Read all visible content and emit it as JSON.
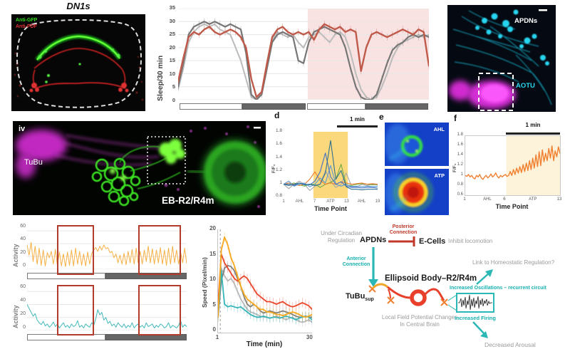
{
  "colors": {
    "teal_accent": "#2ab7b5",
    "inhibit_red": "#c0392b",
    "sleep_red": "#bf5a4b",
    "dark_gray": "#767676",
    "light_gray": "#b8b8b8",
    "activity_orange": "#f6b045",
    "activity_cyan": "#45b8ba",
    "atp_band_yellow": "#fbd46e",
    "atp_band_cream": "#fdf3da",
    "pink_shade": "#f8dedd",
    "magenta": "#e832e8",
    "cyan_neuron": "#18c8e8",
    "green_neuron": "#35e01f"
  },
  "panels": {
    "dn1s": {
      "title": "DN1s",
      "stain_green": "Anti-GFP",
      "stain_red": "Anti-PDF"
    },
    "apdns_panel": {
      "label_neurons": "APDNs",
      "label_region": "AOTU"
    },
    "tubu_panel": {
      "index": "iv",
      "label_left": "TuBu",
      "label_bottom": "EB-R2/R4m"
    },
    "panel_d": {
      "letter": "d",
      "scalebar": "1 min"
    },
    "panel_e": {
      "letter": "e",
      "img1_label": "AHL",
      "img2_label": "ATP"
    },
    "panel_f": {
      "letter": "f",
      "scalebar": "1 min"
    }
  },
  "diagram": {
    "under_circadian": "Under Circadian Regulation",
    "apdns": "APDNs",
    "posterior": "Posterior Connection",
    "ecells": "E-Cells",
    "inhibit": "Inhibit locomotion",
    "anterior": "Anterior Connection",
    "ellipsoid_body": "Ellipsoid Body–R2/R4m",
    "tubu": "TuBu",
    "tubu_sub": "sup",
    "lfp": "Local Field Potential Changes In Central Brain",
    "oscillations": "Increased Oscillations – recurrent circuit",
    "firing": "Increased Firing",
    "link": "Link to Homeostatic Regulation?",
    "arousal": "Decreased Arousal"
  },
  "chart_data": [
    {
      "id": "sleep",
      "type": "line",
      "ylabel": "Sleep/30 min",
      "yticks": [
        "35",
        "30",
        "25",
        "20",
        "15",
        "10",
        "5",
        "0"
      ],
      "ylim": [
        0,
        35
      ],
      "xlim": [
        0,
        48
      ],
      "grid": [
        0,
        5,
        10,
        15,
        20,
        25,
        30,
        35
      ],
      "light_dark_bar": [
        "light",
        "dark",
        "light",
        "dark"
      ],
      "bands": [
        {
          "x0": 24.8,
          "x1": 48,
          "color": "#f8dedd",
          "opacity": 0.85
        }
      ],
      "series": [
        {
          "name": "light-gray genotype",
          "color": "#bcbcbc",
          "w": 2,
          "err": 1.3,
          "values": [
            4,
            12,
            22,
            26,
            28,
            29,
            28,
            29,
            27,
            26,
            25,
            20,
            15,
            8,
            1,
            0,
            3,
            14,
            23,
            26,
            25,
            24,
            25,
            22,
            20,
            24,
            25,
            26,
            24,
            22,
            25,
            26,
            24,
            18,
            10,
            4,
            1,
            0,
            1,
            5,
            10,
            16,
            20,
            22,
            23,
            24,
            25,
            24,
            25
          ]
        },
        {
          "name": "dark-gray genotype",
          "color": "#767676",
          "w": 2.2,
          "err": 1.3,
          "values": [
            5,
            14,
            25,
            28,
            29,
            30,
            29,
            30,
            29,
            28,
            29,
            28,
            27,
            18,
            2,
            0,
            2,
            12,
            22,
            25,
            26,
            25,
            24,
            15,
            14,
            22,
            26,
            27,
            28,
            27,
            26,
            25,
            20,
            12,
            5,
            1,
            0,
            0,
            2,
            8,
            14,
            19,
            21,
            22,
            24,
            25,
            24,
            25,
            24
          ]
        },
        {
          "name": "experimental (red)",
          "color": "#bf5a4b",
          "w": 2.4,
          "err": 1.3,
          "values": [
            7,
            16,
            24,
            26,
            25,
            27,
            28,
            26,
            25,
            26,
            27,
            26,
            24,
            20,
            8,
            1,
            3,
            14,
            24,
            27,
            28,
            26,
            25,
            26,
            25,
            26,
            23,
            27,
            29,
            28,
            27,
            28,
            26,
            27,
            26,
            11,
            20,
            25,
            26,
            25,
            24,
            25,
            26,
            27,
            26,
            25,
            27,
            26,
            13
          ]
        }
      ]
    },
    {
      "id": "atp_multi",
      "type": "line",
      "ylabel": "F/F₀",
      "xlabel": "Time Point",
      "scalebar": "1 min",
      "yticks": [
        "1.8",
        "1.6",
        "1.4",
        "1.2",
        "1",
        "0.8"
      ],
      "xticks": [
        "1",
        "AHL",
        "7",
        "ATP",
        "13",
        "AHL",
        "19"
      ],
      "ylim": [
        0.78,
        1.84
      ],
      "xlim": [
        1,
        19
      ],
      "bands": [
        {
          "x0": 6.7,
          "x1": 13.3,
          "color": "#fbd46e",
          "opacity": 0.9,
          "label": "ATP"
        }
      ],
      "series": [
        {
          "name": "gray cell",
          "color": "#a6a6a6",
          "w": 1.1,
          "values": [
            1,
            0.93,
            1,
            1.05,
            1,
            0.9,
            0.97,
            1,
            1.22,
            1.05,
            0.95,
            1,
            1.18,
            0.97,
            0.96,
            1,
            0.98,
            1,
            0.99
          ]
        },
        {
          "name": "green cell",
          "color": "#70ad47",
          "w": 1.1,
          "values": [
            1,
            1,
            1.02,
            0.99,
            0.97,
            1,
            1,
            0.95,
            1,
            1.03,
            1.08,
            1.32,
            0.99,
            0.98,
            1,
            1.01,
            1,
            0.99,
            1
          ]
        },
        {
          "name": "orange cell",
          "color": "#ed7d31",
          "w": 1.1,
          "values": [
            1,
            1.02,
            1,
            0.98,
            1,
            1.08,
            1.2,
            1.06,
            1,
            1.02,
            1,
            1.04,
            1.02,
            1,
            1.01,
            1.02,
            1,
            1.01,
            1
          ]
        },
        {
          "name": "light-blue cell",
          "color": "#5b9bd5",
          "w": 1.1,
          "values": [
            1,
            1.05,
            0.97,
            1,
            1.02,
            0.96,
            1,
            1.1,
            1.02,
            1.3,
            1,
            0.97,
            1,
            0.96,
            0.97,
            0.96,
            0.97,
            0.96,
            0.97
          ]
        },
        {
          "name": "blue cell",
          "color": "#4472c4",
          "w": 1.1,
          "values": [
            1,
            1,
            0.98,
            1.02,
            1,
            0.99,
            1.05,
            1.2,
            1.5,
            1.12,
            1,
            1.04,
            0.97,
            0.95,
            0.95,
            0.94,
            0.95,
            0.95,
            0.94
          ]
        },
        {
          "name": "steel cell",
          "color": "#31708f",
          "w": 1.1,
          "values": [
            1,
            0.98,
            1,
            1.02,
            0.99,
            1,
            0.98,
            1,
            1.18,
            1.7,
            1.08,
            1.22,
            0.96,
            0.92,
            0.92,
            0.91,
            0.92,
            0.92,
            0.92
          ]
        }
      ]
    },
    {
      "id": "atp_single",
      "type": "line",
      "ylabel": "F/F₀",
      "xlabel": "Time Point",
      "scalebar": "1 min",
      "yticks": [
        "1.8",
        "1.6",
        "1.4",
        "1.2",
        "1",
        "0.8",
        "0.6"
      ],
      "xticks": [
        "1",
        "AHL",
        "6",
        "ATP",
        "13"
      ],
      "ylim": [
        0.6,
        1.8
      ],
      "xlim": [
        1,
        13
      ],
      "bands": [
        {
          "x0": 6.2,
          "x1": 13,
          "color": "#fdf3da",
          "opacity": 1,
          "label": "ATP"
        }
      ],
      "series": [
        {
          "name": "GCaMP response",
          "color": "#f08030",
          "w": 1.4,
          "values": [
            1.0,
            0.98,
            1.02,
            0.97,
            1.0,
            0.95,
            0.93,
            1.0,
            0.97,
            1.02,
            0.95,
            0.92,
            0.97,
            1.0,
            0.95,
            0.98,
            1.03,
            0.97,
            1.0,
            1.05,
            0.98,
            0.95,
            1.0,
            0.97,
            1.0,
            1.02,
            0.98,
            1.0,
            1.08,
            1.0,
            1.12,
            1.02,
            1.15,
            1.05,
            1.18,
            1.06,
            1.22,
            1.08,
            1.25,
            1.1,
            1.3,
            1.12,
            1.35,
            1.15,
            1.42,
            1.18,
            1.48,
            1.2,
            1.52,
            1.28,
            1.45,
            1.3,
            1.55,
            1.35,
            1.6,
            1.3,
            1.5,
            1.38,
            1.58,
            1.45
          ]
        }
      ]
    },
    {
      "id": "act1",
      "type": "line",
      "ylabel": "Activity",
      "yticks": [
        "60",
        "40",
        "20",
        "0"
      ],
      "ylim": [
        0,
        68
      ],
      "xlim": [
        0,
        79
      ],
      "grid": [
        0,
        20,
        40,
        60
      ],
      "light_dark_bar": [
        "light",
        "dark"
      ],
      "series": [
        {
          "name": "locomotor activity (orange)",
          "color": "#f6b045",
          "w": 1,
          "values": [
            38,
            22,
            42,
            12,
            36,
            8,
            33,
            6,
            30,
            5,
            26,
            18,
            28,
            8,
            31,
            6,
            27,
            5,
            24,
            4,
            27,
            6,
            30,
            5,
            33,
            8,
            28,
            6,
            24,
            5,
            27,
            8,
            25,
            30,
            34,
            28,
            36,
            30,
            38,
            32,
            34,
            26,
            28,
            18,
            24,
            10,
            22,
            8,
            25,
            7,
            28,
            10,
            31,
            8,
            33,
            10,
            28,
            8,
            30,
            12,
            36,
            10,
            32,
            8,
            30,
            10,
            34,
            8,
            30,
            6,
            33,
            8,
            36,
            10,
            30,
            8,
            27,
            10,
            33,
            9
          ]
        }
      ]
    },
    {
      "id": "act2",
      "type": "line",
      "ylabel": "Activity",
      "yticks": [
        "60",
        "40",
        "20",
        "0"
      ],
      "ylim": [
        0,
        68
      ],
      "xlim": [
        0,
        79
      ],
      "grid": [
        0,
        20,
        40,
        60
      ],
      "light_dark_bar": [
        "light",
        "dark"
      ],
      "series": [
        {
          "name": "locomotor activity (cyan)",
          "color": "#45b8ba",
          "w": 1,
          "values": [
            40,
            34,
            28,
            22,
            26,
            16,
            12,
            9,
            14,
            7,
            10,
            5,
            8,
            13,
            6,
            10,
            4,
            8,
            12,
            5,
            8,
            4,
            10,
            6,
            8,
            15,
            5,
            8,
            4,
            10,
            7,
            5,
            12,
            8,
            18,
            32,
            24,
            28,
            16,
            20,
            11,
            14,
            7,
            10,
            5,
            12,
            8,
            5,
            10,
            4,
            8,
            5,
            12,
            4,
            8,
            10,
            5,
            8,
            4,
            12,
            6,
            8,
            10,
            4,
            8,
            5,
            10,
            8,
            4,
            6,
            12,
            4,
            8,
            6,
            4,
            8,
            15,
            5,
            9,
            6
          ]
        }
      ]
    },
    {
      "id": "speed",
      "type": "line",
      "ylabel": "Speed (Pixel/min)",
      "xlabel": "Time (min)",
      "yticks": [
        "20",
        "15",
        "10",
        "5",
        "0"
      ],
      "xticks": [
        "1",
        "30"
      ],
      "ylim": [
        0,
        20
      ],
      "xlim": [
        1,
        30
      ],
      "vlines": [
        {
          "x": 1.7,
          "color": "#9a9a9a",
          "dash": "3,3"
        }
      ],
      "series": [
        {
          "name": "light gray",
          "color": "#b9b9b9",
          "w": 1.8,
          "err": 0.9,
          "values": [
            4,
            12.5,
            11,
            10,
            10.5,
            9.5,
            8,
            6.5,
            5.5,
            4.5,
            4,
            3.8,
            3.5,
            3.2,
            3,
            3,
            2.8,
            3,
            3.2,
            3,
            2.8,
            2.5,
            2.8,
            3,
            2.5,
            2.2,
            2,
            2.2,
            2.5,
            2
          ]
        },
        {
          "name": "dark gray",
          "color": "#7f7f7f",
          "w": 1.8,
          "err": 0.9,
          "values": [
            3,
            10,
            12.5,
            13,
            12.8,
            12,
            10.5,
            9,
            7,
            5.5,
            5,
            5.5,
            5,
            4.2,
            3.8,
            4,
            4.2,
            4,
            3.8,
            4,
            4.2,
            4,
            3.8,
            3.5,
            3.2,
            3,
            3,
            3.2,
            3,
            3
          ]
        },
        {
          "name": "cyan",
          "color": "#35b4b8",
          "w": 1.8,
          "err": 0.9,
          "values": [
            3,
            12,
            5.5,
            5,
            5.2,
            5,
            4.8,
            5,
            4.5,
            4,
            3.5,
            3.2,
            3,
            3,
            3.2,
            3,
            2.8,
            3,
            3,
            2.8,
            3,
            3.2,
            3,
            2.8,
            2.5,
            2.8,
            3,
            3.2,
            3,
            2.5
          ]
        },
        {
          "name": "red",
          "color": "#e8472b",
          "w": 1.8,
          "err": 0.9,
          "values": [
            5.5,
            15.2,
            13.5,
            12.5,
            11.5,
            10.5,
            10,
            10.5,
            11,
            10.5,
            9.5,
            8.5,
            7.5,
            7,
            6.5,
            6,
            6,
            5.8,
            5.5,
            5.8,
            6,
            5.5,
            5.2,
            5,
            5.2,
            5.5,
            5.8,
            5.5,
            5.2,
            4.5
          ]
        },
        {
          "name": "orange",
          "color": "#f7a81d",
          "w": 1.8,
          "err": 0.9,
          "values": [
            3,
            16,
            18.5,
            17,
            14.5,
            13,
            11,
            9,
            7.5,
            6.5,
            6,
            5.5,
            5,
            4.5,
            4.5,
            4,
            4,
            3.8,
            3.5,
            3.5,
            3.3,
            3.5,
            3.8,
            4,
            3.8,
            3.5,
            3.2,
            3,
            3.2,
            3.5
          ]
        }
      ]
    }
  ]
}
